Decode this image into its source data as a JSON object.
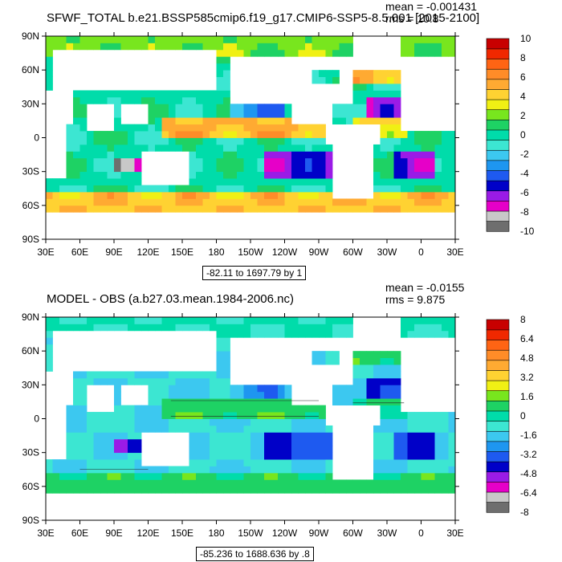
{
  "palette": {
    "levels": 14,
    "colors": [
      "#6e6e6e",
      "#c8c8c8",
      "#e600c8",
      "#9a1be6",
      "#0000c8",
      "#1e5af0",
      "#1e96f0",
      "#3cc8f0",
      "#3ce6d2",
      "#00dcaa",
      "#1ed264",
      "#78e61e",
      "#f0f014",
      "#ffd232",
      "#ffaa32",
      "#ff8c28",
      "#ff6414",
      "#f02800",
      "#c80000"
    ]
  },
  "chart_data": [
    {
      "type": "heatmap",
      "title": "SFWF_TOTAL b.e21.BSSP585cmip6.f19_g17.CMIP6-SSP5-8.5.001 [2015-2100]",
      "mean_text": "mean = -0.001431",
      "rms_text": "rms = 10.8",
      "x_ticks": [
        "30E",
        "60E",
        "90E",
        "120E",
        "150E",
        "180",
        "150W",
        "120W",
        "90W",
        "60W",
        "30W",
        "0",
        "30E"
      ],
      "y_ticks": [
        "90N",
        "60N",
        "30N",
        "0",
        "30S",
        "60S",
        "90S"
      ],
      "xlim_deg": [
        30,
        390
      ],
      "ylim_deg": [
        -90,
        90
      ],
      "colorbar_labels": [
        "10",
        "8",
        "6",
        "4",
        "2",
        "0",
        "-2",
        "-4",
        "-6",
        "-8",
        "-10"
      ],
      "colorbar_range": [
        -10,
        10
      ],
      "contour_info": "-82.11 to 1697.79 by 1",
      "field_scale": 6.5,
      "field_bias": 0.0,
      "contour_lines": false
    },
    {
      "type": "heatmap",
      "title": "MODEL - OBS (a.b27.03.mean.1984-2006.nc)",
      "mean_text": "mean = -0.0155",
      "rms_text": "rms = 9.875",
      "x_ticks": [
        "30E",
        "60E",
        "90E",
        "120E",
        "150E",
        "180",
        "150W",
        "120W",
        "90W",
        "60W",
        "30W",
        "0",
        "30E"
      ],
      "y_ticks": [
        "90N",
        "60N",
        "30N",
        "0",
        "30S",
        "60S",
        "90S"
      ],
      "xlim_deg": [
        30,
        390
      ],
      "ylim_deg": [
        -90,
        90
      ],
      "colorbar_labels": [
        "8",
        "6.4",
        "4.8",
        "3.2",
        "1.6",
        "0",
        "-1.6",
        "-3.2",
        "-4.8",
        "-6.4",
        "-8"
      ],
      "colorbar_range": [
        -8,
        8
      ],
      "contour_info": "-85.236 to 1688.636 by .8",
      "field_scale": 2.8,
      "field_bias": -1.2,
      "contour_lines": true
    }
  ]
}
